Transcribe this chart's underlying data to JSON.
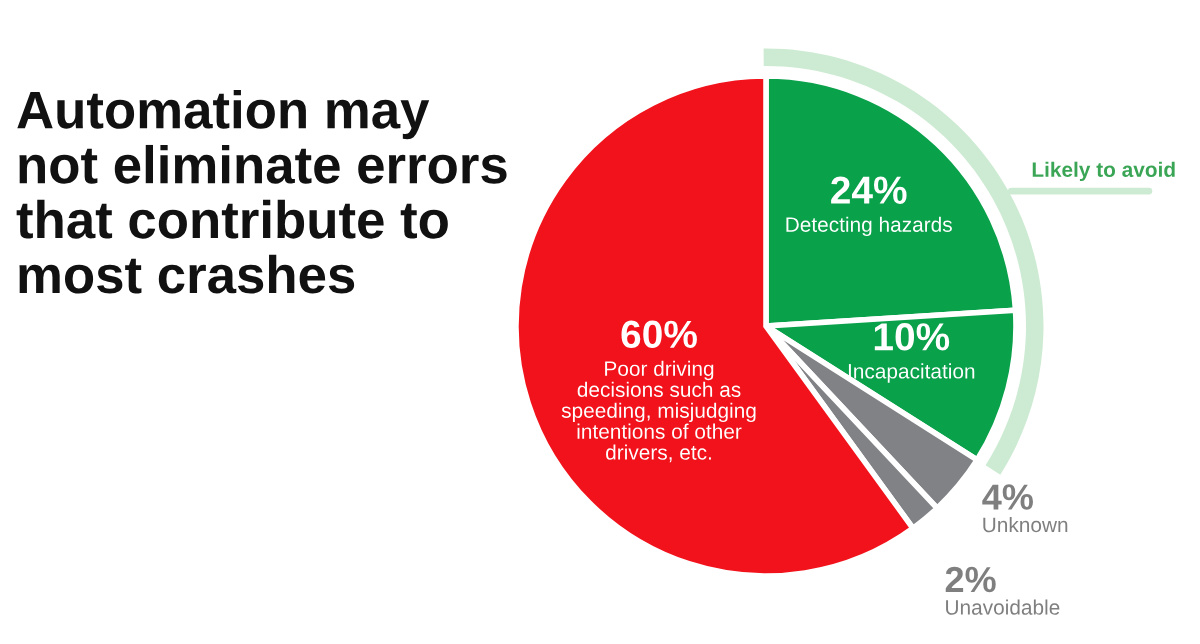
{
  "chart_data": {
    "type": "pie",
    "title": "Automation may\nnot eliminate errors\nthat contribute to\nmost crashes",
    "categories": [
      "Detecting hazards",
      "Incapacitation",
      "Unknown",
      "Unavoidable",
      "Poor driving\ndecisions such as\nspeeding, misjudging\nintentions of other\ndrivers, etc."
    ],
    "values": [
      24,
      10,
      4,
      2,
      60
    ],
    "value_labels": [
      "24%",
      "10%",
      "4%",
      "2%",
      "60%"
    ],
    "colors": [
      "#0aa14b",
      "#0aa14b",
      "#808285",
      "#808285",
      "#f2121b"
    ],
    "annotations": [
      "Likely to avoid"
    ]
  }
}
